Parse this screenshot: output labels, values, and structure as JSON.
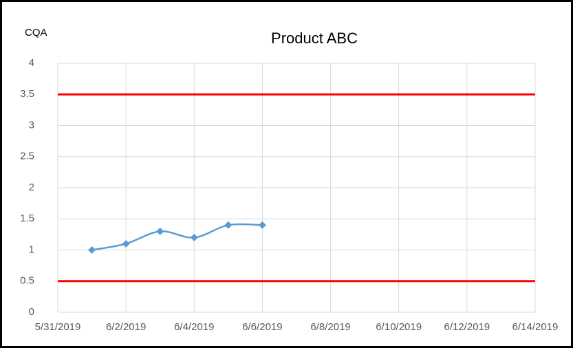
{
  "chart_data": {
    "type": "line",
    "title": "Product ABC",
    "ylabel": "CQA",
    "x": [
      "2019-06-01",
      "2019-06-02",
      "2019-06-03",
      "2019-06-04",
      "2019-06-05",
      "2019-06-06"
    ],
    "series": [
      {
        "color": "#5b9bd5",
        "smooth": true,
        "marker": "diamond",
        "values": [
          1,
          1.1,
          1.3,
          1.2,
          1.4,
          1.4
        ]
      }
    ],
    "reference_lines": [
      {
        "value": 3.5,
        "color": "#ff0000"
      },
      {
        "value": 0.5,
        "color": "#ff0000"
      }
    ],
    "xlim": [
      "2019-05-31",
      "2019-06-14"
    ],
    "xticks": [
      {
        "value": "2019-05-31",
        "label": "5/31/2019"
      },
      {
        "value": "2019-06-02",
        "label": "6/2/2019"
      },
      {
        "value": "2019-06-04",
        "label": "6/4/2019"
      },
      {
        "value": "2019-06-06",
        "label": "6/6/2019"
      },
      {
        "value": "2019-06-08",
        "label": "6/8/2019"
      },
      {
        "value": "2019-06-10",
        "label": "6/10/2019"
      },
      {
        "value": "2019-06-12",
        "label": "6/12/2019"
      },
      {
        "value": "2019-06-14",
        "label": "6/14/2019"
      }
    ],
    "ylim": [
      0,
      4
    ],
    "yticks": [
      0,
      0.5,
      1,
      1.5,
      2,
      2.5,
      3,
      3.5,
      4
    ],
    "grid": true
  }
}
